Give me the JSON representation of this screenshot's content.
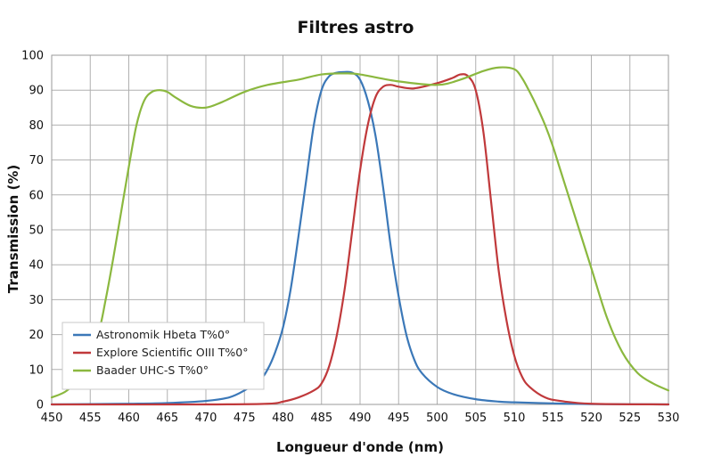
{
  "chart_data": {
    "type": "line",
    "title": "Filtres astro",
    "xlabel": "Longueur d'onde (nm)",
    "ylabel": "Transmission (%)",
    "xlim": [
      450,
      530
    ],
    "ylim": [
      0,
      100
    ],
    "x_ticks": [
      450,
      455,
      460,
      465,
      470,
      475,
      480,
      485,
      490,
      495,
      500,
      505,
      510,
      515,
      520,
      525,
      530
    ],
    "y_ticks": [
      0,
      10,
      20,
      30,
      40,
      50,
      60,
      70,
      80,
      90,
      100
    ],
    "grid": true,
    "legend_position": "bottom-left",
    "series": [
      {
        "name": "Astronomik Hbeta T%0°",
        "color": "#3b78b8",
        "x": [
          450,
          460,
          465,
          470,
          473,
          475,
          477,
          478,
          479,
          480,
          481,
          482,
          483,
          484,
          485,
          486,
          487,
          488,
          489,
          490,
          491,
          492,
          493,
          494,
          495,
          496,
          497,
          498,
          500,
          502,
          505,
          508,
          510,
          515,
          520,
          530
        ],
        "y": [
          0,
          0.2,
          0.4,
          1,
          2,
          4,
          7,
          10,
          15,
          22,
          33,
          48,
          64,
          80,
          90,
          94,
          95,
          95.2,
          95,
          93,
          87,
          77,
          62,
          45,
          31,
          20,
          13,
          9,
          5,
          3,
          1.5,
          0.8,
          0.6,
          0.3,
          0.1,
          0
        ]
      },
      {
        "name": "Explore Scientific OIII T%0°",
        "color": "#c0393b",
        "x": [
          450,
          470,
          478,
          480,
          482,
          484,
          485,
          486,
          487,
          488,
          489,
          490,
          491,
          492,
          493,
          494,
          495,
          497,
          500,
          502,
          503,
          504,
          505,
          506,
          507,
          508,
          509,
          510,
          511,
          512,
          514,
          516,
          520,
          530
        ],
        "y": [
          0,
          0,
          0.2,
          0.8,
          2,
          4,
          6,
          11,
          20,
          33,
          50,
          67,
          80,
          88,
          91,
          91.5,
          91,
          90.5,
          92,
          93.5,
          94.5,
          94,
          90,
          78,
          58,
          38,
          24,
          14,
          8,
          5,
          2,
          1,
          0.2,
          0
        ]
      },
      {
        "name": "Baader UHC-S T%0°",
        "color": "#8bb83f",
        "x": [
          450,
          452,
          454,
          456,
          457,
          458,
          459,
          460,
          461,
          462,
          463,
          464,
          465,
          466,
          468,
          470,
          472,
          475,
          478,
          482,
          485,
          488,
          490,
          495,
          500,
          503,
          506,
          508,
          510,
          511,
          512,
          513,
          514,
          515,
          516,
          518,
          520,
          522,
          524,
          526,
          528,
          530
        ],
        "y": [
          2,
          4,
          9,
          20,
          30,
          42,
          55,
          68,
          80,
          87,
          89.5,
          90,
          89.5,
          88,
          85.5,
          85,
          86.5,
          89.5,
          91.5,
          93,
          94.5,
          94.8,
          94.5,
          92.5,
          91.5,
          93,
          95.5,
          96.5,
          96,
          93.5,
          89.5,
          85,
          80,
          74,
          67,
          53,
          39,
          25,
          15,
          9,
          6,
          4
        ]
      }
    ]
  }
}
